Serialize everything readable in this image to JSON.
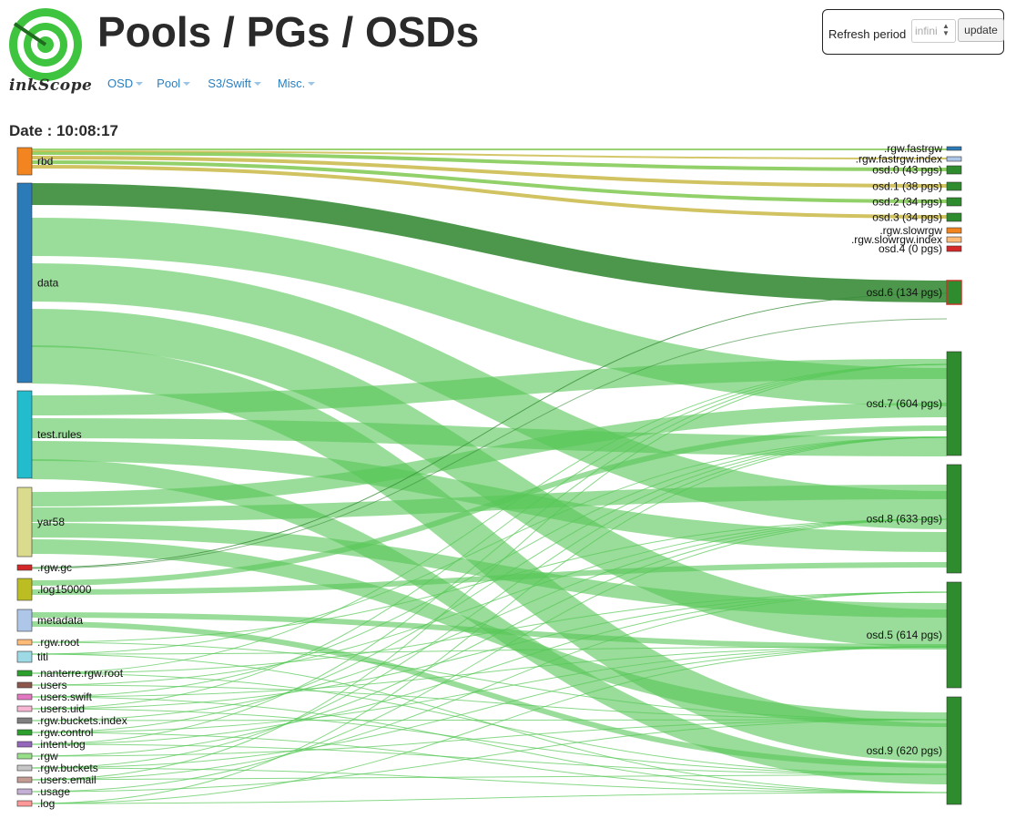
{
  "brand": {
    "name": "inkScope"
  },
  "page_title": "Pools / PGs / OSDs",
  "nav": [
    {
      "label": "OSD"
    },
    {
      "label": "Pool"
    },
    {
      "label": "S3/Swift"
    },
    {
      "label": "Misc."
    }
  ],
  "refresh": {
    "label": "Refresh period",
    "value": "infini",
    "button_label": "update"
  },
  "date": {
    "label": "Date : 10:08:17"
  },
  "colors": {
    "link_main": "#56c756",
    "link_dark": "#3a8c3a",
    "link_gold": "#c9b945",
    "link_green": "#7fc850",
    "osd_fill": "#2e8b2e",
    "accent": "#2a7fc0"
  },
  "pools": [
    {
      "name": "rbd",
      "color": "#f2851f"
    },
    {
      "name": "data",
      "color": "#2b7bb9"
    },
    {
      "name": "test.rules",
      "color": "#23bccc"
    },
    {
      "name": "yar58",
      "color": "#dbdb8d"
    },
    {
      "name": ".rgw.gc",
      "color": "#d62728"
    },
    {
      "name": ".log150000",
      "color": "#bcbd22"
    },
    {
      "name": "metadata",
      "color": "#aec7e8"
    },
    {
      "name": ".rgw.root",
      "color": "#ffbb78"
    },
    {
      "name": "titi",
      "color": "#9edae5"
    },
    {
      "name": ".nanterre.rgw.root",
      "color": "#2ca02c"
    },
    {
      "name": ".users",
      "color": "#8c564b"
    },
    {
      "name": ".users.swift",
      "color": "#e377c2"
    },
    {
      "name": ".users.uid",
      "color": "#f7b6d2"
    },
    {
      "name": ".rgw.buckets.index",
      "color": "#7f7f7f"
    },
    {
      "name": ".rgw.control",
      "color": "#2ca02c"
    },
    {
      "name": ".intent-log",
      "color": "#9467bd"
    },
    {
      "name": ".rgw",
      "color": "#98df8a"
    },
    {
      "name": ".rgw.buckets",
      "color": "#c7c7c7"
    },
    {
      "name": ".users.email",
      "color": "#c49c94"
    },
    {
      "name": ".usage",
      "color": "#c5b0d5"
    },
    {
      "name": ".log",
      "color": "#ff9896"
    }
  ],
  "osds": [
    {
      "name": ".rgw.fastrgw",
      "color": "#2b7bb9"
    },
    {
      "name": ".rgw.fastrgw.index",
      "color": "#aec7e8"
    },
    {
      "name": "osd.0 (43 pgs)",
      "color": "#2e8b2e"
    },
    {
      "name": "osd.1 (38 pgs)",
      "color": "#2e8b2e"
    },
    {
      "name": "osd.2 (34 pgs)",
      "color": "#2e8b2e"
    },
    {
      "name": "osd.3 (34 pgs)",
      "color": "#2e8b2e"
    },
    {
      "name": ".rgw.slowrgw",
      "color": "#f2851f"
    },
    {
      "name": ".rgw.slowrgw.index",
      "color": "#ffbb78"
    },
    {
      "name": "osd.4 (0 pgs)",
      "color": "#d62728"
    },
    {
      "name": "osd.6 (134 pgs)",
      "color": "#2e8b2e"
    },
    {
      "name": "osd.7 (604 pgs)",
      "color": "#2e8b2e"
    },
    {
      "name": "osd.8 (633 pgs)",
      "color": "#2e8b2e"
    },
    {
      "name": "osd.5 (614 pgs)",
      "color": "#2e8b2e"
    },
    {
      "name": "osd.9 (620 pgs)",
      "color": "#2e8b2e"
    }
  ]
}
